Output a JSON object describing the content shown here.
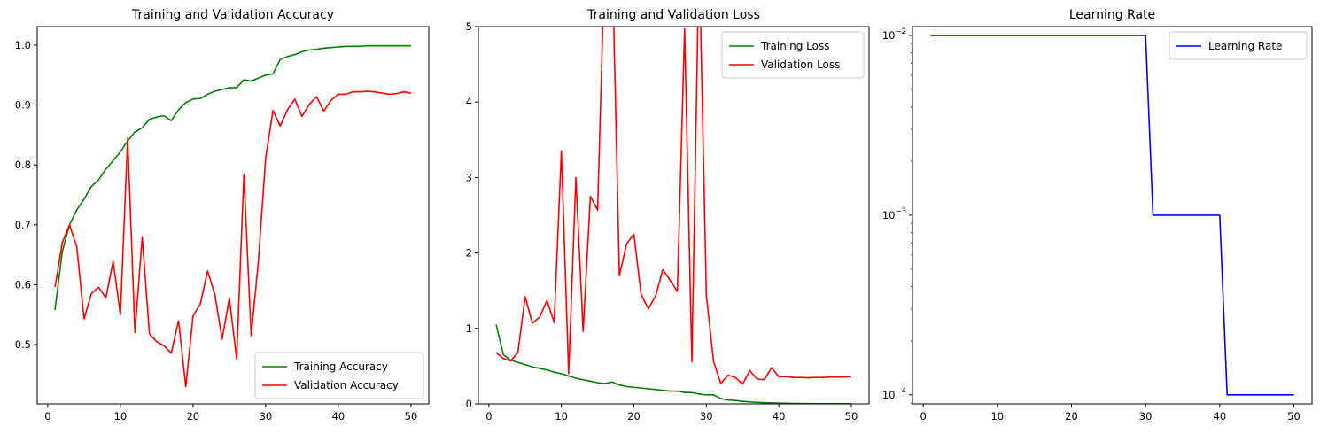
{
  "chart_data": [
    {
      "type": "line",
      "title": "Training and Validation Accuracy",
      "xlabel": "",
      "ylabel": "",
      "xlim": [
        -1.45,
        52.45
      ],
      "ylim": [
        0.401,
        1.031
      ],
      "xticks": [
        0,
        10,
        20,
        30,
        40,
        50
      ],
      "yticks": [
        0.5,
        0.6,
        0.7,
        0.8,
        0.9,
        1.0
      ],
      "ytick_labels": [
        "0.5",
        "0.6",
        "0.7",
        "0.8",
        "0.9",
        "1.0"
      ],
      "yscale": "linear",
      "grid": false,
      "legend_position": "lower-right",
      "series": [
        {
          "name": "Training Accuracy",
          "color": "#008000",
          "x": [
            1,
            2,
            3,
            4,
            5,
            6,
            7,
            8,
            9,
            10,
            11,
            12,
            13,
            14,
            15,
            16,
            17,
            18,
            19,
            20,
            21,
            22,
            23,
            24,
            25,
            26,
            27,
            28,
            29,
            30,
            31,
            32,
            33,
            34,
            35,
            36,
            37,
            38,
            39,
            40,
            41,
            42,
            43,
            44,
            45,
            46,
            47,
            48,
            49,
            50
          ],
          "values": [
            0.558,
            0.655,
            0.7,
            0.725,
            0.743,
            0.764,
            0.775,
            0.793,
            0.807,
            0.822,
            0.84,
            0.855,
            0.862,
            0.876,
            0.88,
            0.882,
            0.874,
            0.892,
            0.904,
            0.91,
            0.911,
            0.918,
            0.923,
            0.926,
            0.929,
            0.929,
            0.942,
            0.94,
            0.945,
            0.95,
            0.952,
            0.976,
            0.981,
            0.984,
            0.989,
            0.992,
            0.993,
            0.995,
            0.996,
            0.997,
            0.998,
            0.998,
            0.998,
            0.999,
            0.999,
            0.999,
            0.999,
            0.999,
            0.999,
            0.999
          ]
        },
        {
          "name": "Validation Accuracy",
          "color": "#ff0000",
          "x": [
            1,
            2,
            3,
            4,
            5,
            6,
            7,
            8,
            9,
            10,
            11,
            12,
            13,
            14,
            15,
            16,
            17,
            18,
            19,
            20,
            21,
            22,
            23,
            24,
            25,
            26,
            27,
            28,
            29,
            30,
            31,
            32,
            33,
            34,
            35,
            36,
            37,
            38,
            39,
            40,
            41,
            42,
            43,
            44,
            45,
            46,
            47,
            48,
            49,
            50
          ],
          "values": [
            0.596,
            0.67,
            0.7,
            0.663,
            0.543,
            0.585,
            0.596,
            0.578,
            0.639,
            0.55,
            0.845,
            0.52,
            0.679,
            0.518,
            0.505,
            0.498,
            0.486,
            0.54,
            0.43,
            0.548,
            0.568,
            0.623,
            0.584,
            0.509,
            0.578,
            0.476,
            0.784,
            0.515,
            0.64,
            0.812,
            0.891,
            0.865,
            0.892,
            0.91,
            0.881,
            0.901,
            0.914,
            0.89,
            0.908,
            0.918,
            0.918,
            0.922,
            0.922,
            0.923,
            0.922,
            0.92,
            0.918,
            0.919,
            0.922,
            0.92
          ]
        }
      ]
    },
    {
      "type": "line",
      "title": "Training and Validation Loss",
      "xlabel": "",
      "ylabel": "",
      "xlim": [
        -1.45,
        52.45
      ],
      "ylim": [
        0,
        5
      ],
      "xticks": [
        0,
        10,
        20,
        30,
        40,
        50
      ],
      "yticks": [
        0,
        1,
        2,
        3,
        4,
        5
      ],
      "ytick_labels": [
        "0",
        "1",
        "2",
        "3",
        "4",
        "5"
      ],
      "yscale": "linear",
      "grid": false,
      "legend_position": "upper-right",
      "series": [
        {
          "name": "Training Loss",
          "color": "#008000",
          "x": [
            1,
            2,
            3,
            4,
            5,
            6,
            7,
            8,
            9,
            10,
            11,
            12,
            13,
            14,
            15,
            16,
            17,
            18,
            19,
            20,
            21,
            22,
            23,
            24,
            25,
            26,
            27,
            28,
            29,
            30,
            31,
            32,
            33,
            34,
            35,
            36,
            37,
            38,
            39,
            40,
            41,
            42,
            43,
            44,
            45,
            46,
            47,
            48,
            49,
            50
          ],
          "values": [
            1.05,
            0.65,
            0.58,
            0.55,
            0.52,
            0.49,
            0.47,
            0.45,
            0.42,
            0.4,
            0.37,
            0.34,
            0.32,
            0.3,
            0.28,
            0.27,
            0.29,
            0.25,
            0.23,
            0.22,
            0.21,
            0.2,
            0.19,
            0.18,
            0.17,
            0.17,
            0.15,
            0.15,
            0.13,
            0.12,
            0.12,
            0.07,
            0.05,
            0.045,
            0.035,
            0.025,
            0.02,
            0.015,
            0.012,
            0.01,
            0.008,
            0.006,
            0.005,
            0.004,
            0.003,
            0.003,
            0.002,
            0.002,
            0.002,
            0.001
          ]
        },
        {
          "name": "Validation Loss",
          "color": "#ff0000",
          "x": [
            1,
            2,
            3,
            4,
            5,
            6,
            7,
            8,
            9,
            10,
            11,
            12,
            13,
            14,
            15,
            16,
            17,
            18,
            19,
            20,
            21,
            22,
            23,
            24,
            25,
            26,
            27,
            28,
            29,
            30,
            31,
            32,
            33,
            34,
            35,
            36,
            37,
            38,
            39,
            40,
            41,
            42,
            43,
            44,
            45,
            46,
            47,
            48,
            49,
            50
          ],
          "values": [
            0.68,
            0.6,
            0.57,
            0.68,
            1.42,
            1.07,
            1.15,
            1.37,
            1.08,
            3.35,
            0.4,
            3.0,
            0.96,
            2.75,
            2.57,
            6.0,
            6.0,
            1.7,
            2.12,
            2.25,
            1.45,
            1.26,
            1.43,
            1.78,
            1.64,
            1.49,
            4.97,
            0.56,
            6.0,
            1.44,
            0.56,
            0.27,
            0.38,
            0.35,
            0.26,
            0.44,
            0.33,
            0.32,
            0.48,
            0.36,
            0.36,
            0.35,
            0.35,
            0.345,
            0.35,
            0.35,
            0.355,
            0.355,
            0.355,
            0.36
          ]
        }
      ]
    },
    {
      "type": "line",
      "title": "Learning Rate",
      "xlabel": "",
      "ylabel": "",
      "xlim": [
        -1.45,
        52.45
      ],
      "ylim": [
        8.91e-05,
        0.0112
      ],
      "xticks": [
        0,
        10,
        20,
        30,
        40,
        50
      ],
      "yticks": [
        0.0001,
        0.001,
        0.01
      ],
      "ytick_labels": [
        "10−4",
        "10−3",
        "10−2"
      ],
      "yscale": "log",
      "grid": false,
      "legend_position": "upper-right",
      "series": [
        {
          "name": "Learning Rate",
          "color": "#0000ff",
          "x": [
            1,
            2,
            3,
            4,
            5,
            6,
            7,
            8,
            9,
            10,
            11,
            12,
            13,
            14,
            15,
            16,
            17,
            18,
            19,
            20,
            21,
            22,
            23,
            24,
            25,
            26,
            27,
            28,
            29,
            30,
            31,
            32,
            33,
            34,
            35,
            36,
            37,
            38,
            39,
            40,
            41,
            42,
            43,
            44,
            45,
            46,
            47,
            48,
            49,
            50
          ],
          "values": [
            0.01,
            0.01,
            0.01,
            0.01,
            0.01,
            0.01,
            0.01,
            0.01,
            0.01,
            0.01,
            0.01,
            0.01,
            0.01,
            0.01,
            0.01,
            0.01,
            0.01,
            0.01,
            0.01,
            0.01,
            0.01,
            0.01,
            0.01,
            0.01,
            0.01,
            0.01,
            0.01,
            0.01,
            0.01,
            0.01,
            0.001,
            0.001,
            0.001,
            0.001,
            0.001,
            0.001,
            0.001,
            0.001,
            0.001,
            0.001,
            0.0001,
            0.0001,
            0.0001,
            0.0001,
            0.0001,
            0.0001,
            0.0001,
            0.0001,
            0.0001,
            0.0001
          ]
        }
      ]
    }
  ]
}
